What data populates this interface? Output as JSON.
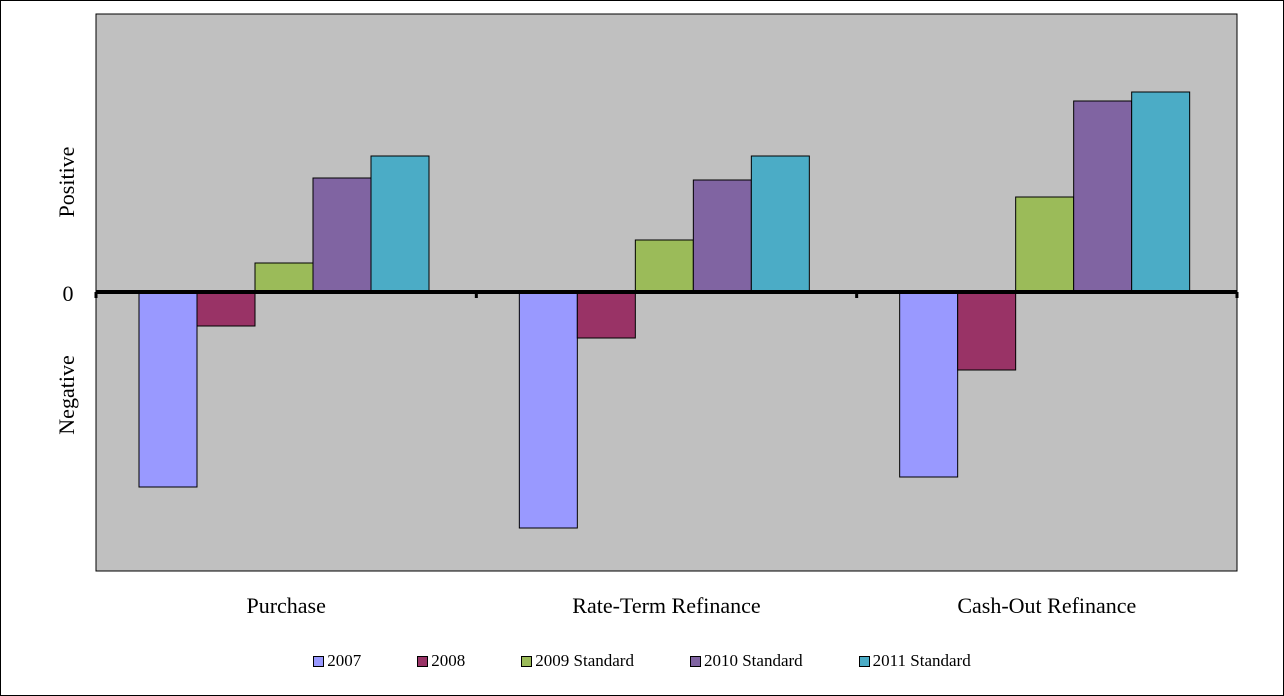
{
  "chart_data": {
    "type": "bar",
    "title": "",
    "xlabel": "",
    "ylabel": "",
    "y_tick_labels": {
      "positive": "Positive",
      "zero": "0",
      "negative": "Negative"
    },
    "categories": [
      "Purchase",
      "Rate-Term Refinance",
      "Cash-Out Refinance"
    ],
    "series": [
      {
        "name": "2007",
        "color": "#9999FF",
        "values": [
          -195,
          -236,
          -185
        ]
      },
      {
        "name": "2008",
        "color": "#993366",
        "values": [
          -34,
          -46,
          -78
        ]
      },
      {
        "name": "2009 Standard",
        "color": "#9BBB59",
        "values": [
          29,
          52,
          95
        ]
      },
      {
        "name": "2010 Standard",
        "color": "#8064A2",
        "values": [
          114,
          112,
          191
        ]
      },
      {
        "name": "2011 Standard",
        "color": "#4BACC6",
        "values": [
          136,
          136,
          200
        ]
      }
    ],
    "ylim": [
      -278,
      278
    ],
    "plot_background": "#C0C0C0",
    "grid": false,
    "legend_position": "bottom"
  }
}
